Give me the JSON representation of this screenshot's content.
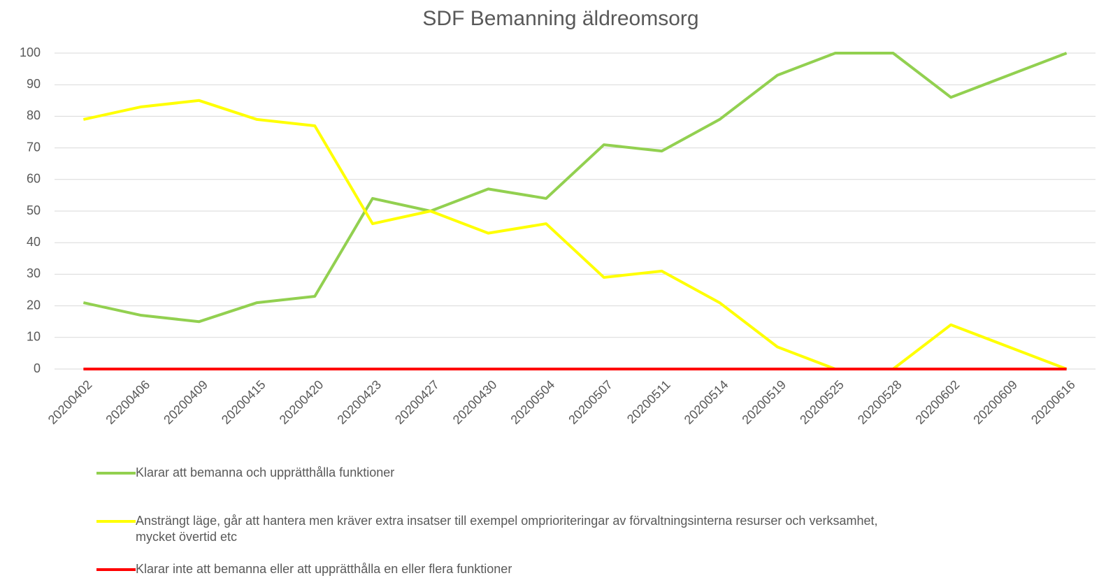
{
  "chart_data": {
    "type": "line",
    "title": "SDF Bemanning äldreomsorg",
    "categories": [
      "20200402",
      "20200406",
      "20200409",
      "20200415",
      "20200420",
      "20200423",
      "20200427",
      "20200430",
      "20200504",
      "20200507",
      "20200511",
      "20200514",
      "20200519",
      "20200525",
      "20200528",
      "20200602",
      "20200609",
      "20200616"
    ],
    "series": [
      {
        "name": "Klarar att bemanna och upprätthålla funktioner",
        "color": "#92d050",
        "values": [
          21,
          17,
          15,
          21,
          23,
          54,
          50,
          57,
          54,
          71,
          69,
          79,
          93,
          100,
          100,
          86,
          93,
          100
        ]
      },
      {
        "name": "Ansträngt läge, går att hantera men kräver extra insatser till exempel omprioriteringar av förvaltningsinterna resurser och verksamhet, mycket övertid etc",
        "color": "#ffff00",
        "values": [
          79,
          83,
          85,
          79,
          77,
          46,
          50,
          43,
          46,
          29,
          31,
          21,
          7,
          0,
          0,
          14,
          7,
          0
        ]
      },
      {
        "name": "Klarar inte att bemanna eller att upprätthålla en eller flera funktioner",
        "color": "#ff0000",
        "values": [
          0,
          0,
          0,
          0,
          0,
          0,
          0,
          0,
          0,
          0,
          0,
          0,
          0,
          0,
          0,
          0,
          0,
          0
        ]
      }
    ],
    "ylim": [
      0,
      100
    ],
    "yticks": [
      0,
      10,
      20,
      30,
      40,
      50,
      60,
      70,
      80,
      90,
      100
    ],
    "grid": true
  }
}
